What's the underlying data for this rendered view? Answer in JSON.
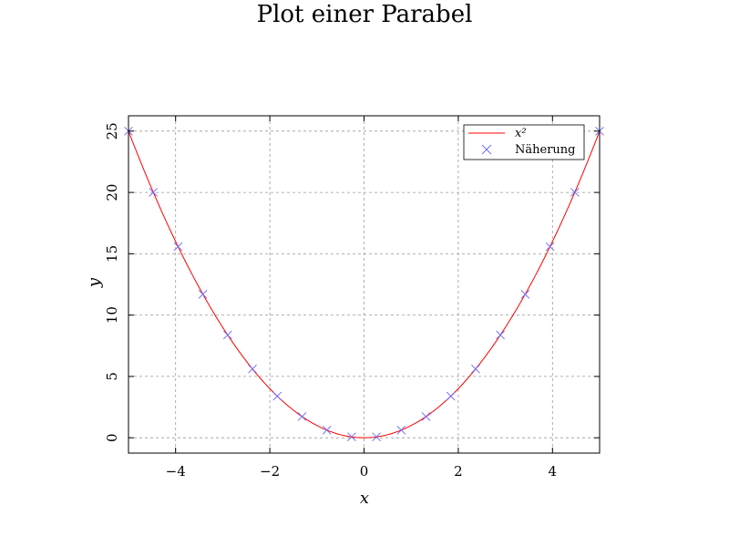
{
  "chart_data": {
    "type": "line",
    "title": "Plot einer Parabel",
    "xlabel": "x",
    "ylabel": "y",
    "xlim": [
      -5,
      5
    ],
    "ylim": [
      -1.25,
      26.25
    ],
    "x_ticks": [
      -4,
      -2,
      0,
      2,
      4
    ],
    "x_tick_labels": [
      "−4",
      "−2",
      "0",
      "2",
      "4"
    ],
    "y_ticks": [
      0,
      5,
      10,
      15,
      20,
      25
    ],
    "y_tick_labels": [
      "0",
      "5",
      "10",
      "15",
      "20",
      "25"
    ],
    "grid": true,
    "legend_position": "top-right",
    "series": [
      {
        "name": "x²",
        "style": "line",
        "color": "#ff0000",
        "function": "x^2",
        "x_range": [
          -5,
          5
        ]
      },
      {
        "name": "Näherung",
        "style": "markers",
        "marker": "x",
        "color": "#6666ff",
        "x": [
          -5.0,
          -4.474,
          -3.947,
          -3.421,
          -2.895,
          -2.368,
          -1.842,
          -1.316,
          -0.789,
          -0.263,
          0.263,
          0.789,
          1.316,
          1.842,
          2.368,
          2.895,
          3.421,
          3.947,
          4.474,
          5.0
        ],
        "y": [
          25.0,
          20.01,
          15.58,
          11.7,
          8.38,
          5.61,
          3.39,
          1.73,
          0.62,
          0.07,
          0.07,
          0.62,
          1.73,
          3.39,
          5.61,
          8.38,
          11.7,
          15.58,
          20.01,
          25.0
        ]
      }
    ]
  }
}
